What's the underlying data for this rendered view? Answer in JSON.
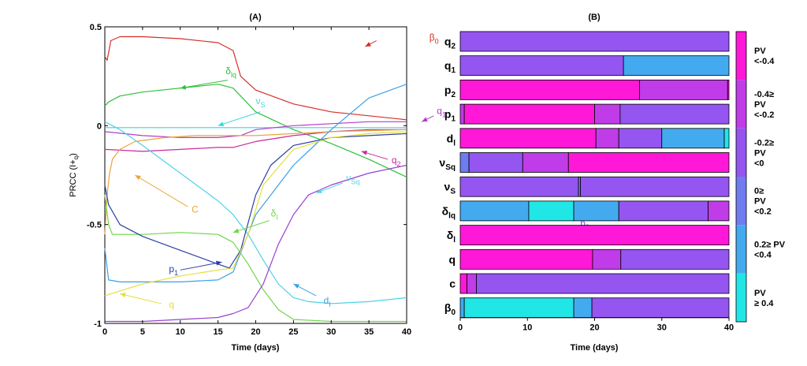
{
  "chart_data": [
    {
      "panel": "(A)",
      "type": "line",
      "title": "(A)",
      "xlabel": "Time (days)",
      "ylabel": "PRCC (I+q)",
      "xlim": [
        0,
        40
      ],
      "ylim": [
        -1,
        0.5
      ],
      "xticks": [
        "0",
        "5",
        "10",
        "15",
        "20",
        "25",
        "30",
        "35",
        "40"
      ],
      "xtick_values": [
        0,
        5,
        10,
        15,
        20,
        25,
        30,
        35,
        40
      ],
      "yticks": [
        "0.5",
        "0",
        "-0.5",
        "-1"
      ],
      "ytick_values": [
        0.5,
        0,
        -0.5,
        -1
      ],
      "series": [
        {
          "name": "β0",
          "color": "#d62f2a",
          "x": [
            0,
            0.3,
            0.8,
            2,
            5,
            10,
            15,
            17,
            18,
            20,
            25,
            30,
            35,
            40
          ],
          "y": [
            0.35,
            0.33,
            0.43,
            0.45,
            0.45,
            0.44,
            0.42,
            0.38,
            0.25,
            0.18,
            0.11,
            0.07,
            0.05,
            0.03
          ]
        },
        {
          "name": "δlq",
          "color": "#2fbf3a",
          "x": [
            0,
            0.5,
            2,
            5,
            10,
            15,
            17,
            20,
            25,
            30,
            35,
            40
          ],
          "y": [
            0.1,
            0.12,
            0.15,
            0.17,
            0.19,
            0.21,
            0.19,
            0.07,
            -0.02,
            -0.09,
            -0.17,
            -0.26
          ]
        },
        {
          "name": "νS",
          "color": "#3fd6d6",
          "x": [
            0,
            5,
            10,
            15,
            20,
            25,
            30,
            35,
            40
          ],
          "y": [
            -0.01,
            -0.01,
            -0.01,
            -0.01,
            -0.01,
            -0.01,
            -0.01,
            -0.01,
            -0.01
          ]
        },
        {
          "name": "q1",
          "color": "#b040c8",
          "x": [
            0,
            5,
            10,
            15,
            18,
            20,
            25,
            30,
            35,
            40
          ],
          "y": [
            -0.03,
            -0.05,
            -0.06,
            -0.06,
            -0.05,
            -0.02,
            0.0,
            0.01,
            0.02,
            0.02
          ]
        },
        {
          "name": "q2",
          "color": "#c82aa0",
          "x": [
            0,
            5,
            10,
            15,
            17,
            20,
            25,
            30,
            35,
            40
          ],
          "y": [
            -0.12,
            -0.13,
            -0.12,
            -0.11,
            -0.11,
            -0.08,
            -0.05,
            -0.03,
            -0.02,
            -0.02
          ]
        },
        {
          "name": "νSq",
          "color": "#4dd3e8",
          "x": [
            0,
            2,
            5,
            10,
            15,
            17,
            19,
            21,
            23,
            25,
            27,
            30,
            35,
            40
          ],
          "y": [
            0.02,
            -0.02,
            -0.1,
            -0.24,
            -0.38,
            -0.45,
            -0.55,
            -0.68,
            -0.8,
            -0.87,
            -0.89,
            -0.9,
            -0.89,
            -0.87
          ]
        },
        {
          "name": "C",
          "color": "#e8a63a",
          "x": [
            0,
            0.3,
            0.6,
            1,
            2,
            4,
            8,
            12,
            17,
            20,
            25,
            30,
            40
          ],
          "y": [
            -0.55,
            -0.35,
            -0.25,
            -0.17,
            -0.12,
            -0.08,
            -0.06,
            -0.05,
            -0.05,
            -0.05,
            -0.04,
            -0.03,
            -0.02
          ]
        },
        {
          "name": "δl",
          "color": "#6fd64a",
          "x": [
            0,
            0.5,
            1,
            3,
            5,
            10,
            15,
            17,
            19,
            21,
            23,
            25,
            30,
            35,
            40
          ],
          "y": [
            -0.35,
            -0.5,
            -0.55,
            -0.55,
            -0.55,
            -0.54,
            -0.55,
            -0.59,
            -0.7,
            -0.83,
            -0.93,
            -0.98,
            -0.99,
            -0.99,
            -0.99
          ]
        },
        {
          "name": "p1",
          "color": "#2b3fa8",
          "x": [
            0,
            0.5,
            2,
            5,
            10,
            15,
            16.5,
            18,
            20,
            22,
            25,
            30,
            35,
            40
          ],
          "y": [
            -0.3,
            -0.4,
            -0.5,
            -0.56,
            -0.63,
            -0.7,
            -0.72,
            -0.63,
            -0.35,
            -0.2,
            -0.1,
            -0.06,
            -0.05,
            -0.04
          ]
        },
        {
          "name": "d1",
          "color": "#3aa0e8",
          "x": [
            0,
            0.5,
            2,
            5,
            10,
            15,
            17,
            20,
            25,
            30,
            35,
            40
          ],
          "y": [
            -0.62,
            -0.78,
            -0.79,
            -0.79,
            -0.79,
            -0.78,
            -0.74,
            -0.45,
            -0.2,
            -0.02,
            0.14,
            0.21
          ]
        },
        {
          "name": "q",
          "color": "#e6df3a",
          "x": [
            0,
            5,
            10,
            15,
            17,
            19,
            21,
            25,
            30,
            35,
            40
          ],
          "y": [
            -0.86,
            -0.8,
            -0.76,
            -0.73,
            -0.72,
            -0.55,
            -0.3,
            -0.12,
            -0.06,
            -0.04,
            -0.03
          ]
        },
        {
          "name": "p2",
          "color": "#9a3fd0",
          "x": [
            0,
            5,
            10,
            15,
            17,
            19,
            21,
            23,
            25,
            27,
            30,
            35,
            40
          ],
          "y": [
            -0.99,
            -0.99,
            -0.98,
            -0.97,
            -0.95,
            -0.92,
            -0.8,
            -0.6,
            -0.45,
            -0.35,
            -0.3,
            -0.24,
            -0.2
          ]
        }
      ],
      "annotations": [
        {
          "base": "β",
          "sub": "0",
          "color": "#d62f2a"
        },
        {
          "base": "δ",
          "sub": "lq",
          "color": "#2fbf3a"
        },
        {
          "base": "ν",
          "sub": "S",
          "color": "#3fd6d6"
        },
        {
          "base": "q",
          "sub": "1",
          "color": "#b040c8"
        },
        {
          "base": "q",
          "sub": "2",
          "color": "#c82aa0"
        },
        {
          "base": "ν",
          "sub": "Sq",
          "color": "#4dd3e8"
        },
        {
          "base": "C",
          "sub": "",
          "color": "#e8a63a"
        },
        {
          "base": "δ",
          "sub": "l",
          "color": "#6fd64a"
        },
        {
          "base": "p",
          "sub": "1",
          "color": "#2b3fa8"
        },
        {
          "base": "d",
          "sub": "l",
          "color": "#3aa0e8"
        },
        {
          "base": "q",
          "sub": "",
          "color": "#e6df3a"
        },
        {
          "base": "p",
          "sub": "2",
          "color": "#9a3fd0"
        }
      ]
    },
    {
      "panel": "(B)",
      "type": "bar",
      "orientation": "horizontal",
      "stacked": true,
      "title": "(B)",
      "xlabel": "Time (days)",
      "xlim": [
        0,
        40
      ],
      "xticks": [
        "0",
        "10",
        "20",
        "30",
        "40"
      ],
      "xtick_values": [
        0,
        10,
        20,
        30,
        40
      ],
      "rows": [
        {
          "base": "q",
          "sub": "2",
          "segments": [
            [
              0,
              40,
              2
            ]
          ]
        },
        {
          "base": "q",
          "sub": "1",
          "segments": [
            [
              0,
              24.3,
              2
            ],
            [
              24.3,
              40,
              4
            ]
          ]
        },
        {
          "base": "p",
          "sub": "2",
          "segments": [
            [
              0,
              26.7,
              0
            ],
            [
              26.7,
              39.8,
              1
            ],
            [
              39.8,
              40,
              0
            ]
          ]
        },
        {
          "base": "p",
          "sub": "1",
          "segments": [
            [
              0,
              0.6,
              1
            ],
            [
              0.6,
              20,
              0
            ],
            [
              20,
              23.8,
              1
            ],
            [
              23.8,
              40,
              2
            ]
          ]
        },
        {
          "base": "d",
          "sub": "l",
          "segments": [
            [
              0,
              20.2,
              0
            ],
            [
              20.2,
              23.6,
              1
            ],
            [
              23.6,
              30,
              2
            ],
            [
              30,
              39.3,
              4
            ],
            [
              39.3,
              40,
              5
            ]
          ]
        },
        {
          "base": "ν",
          "sub": "Sq",
          "segments": [
            [
              0,
              1.3,
              3
            ],
            [
              1.3,
              9.3,
              2
            ],
            [
              9.3,
              16.1,
              1
            ],
            [
              16.1,
              40,
              0
            ]
          ]
        },
        {
          "base": "ν",
          "sub": "S",
          "segments": [
            [
              0,
              17.6,
              2
            ],
            [
              17.6,
              17.9,
              3
            ],
            [
              17.9,
              40,
              2
            ]
          ]
        },
        {
          "base": "δ",
          "sub": "lq",
          "segments": [
            [
              0,
              10.2,
              4
            ],
            [
              10.2,
              16.9,
              5
            ],
            [
              16.9,
              23.6,
              4
            ],
            [
              23.6,
              36.9,
              2
            ],
            [
              36.9,
              40,
              1
            ]
          ]
        },
        {
          "base": "δ",
          "sub": "l",
          "segments": [
            [
              0,
              40,
              0
            ]
          ]
        },
        {
          "base": "q",
          "sub": "",
          "segments": [
            [
              0,
              19.7,
              0
            ],
            [
              19.7,
              23.9,
              1
            ],
            [
              23.9,
              40,
              2
            ]
          ]
        },
        {
          "base": "c",
          "sub": "",
          "segments": [
            [
              0,
              1,
              0
            ],
            [
              1,
              2.4,
              1
            ],
            [
              2.4,
              40,
              2
            ]
          ]
        },
        {
          "base": "β",
          "sub": "0",
          "segments": [
            [
              0,
              0.6,
              4
            ],
            [
              0.6,
              16.9,
              5
            ],
            [
              16.9,
              19.6,
              4
            ],
            [
              19.6,
              40,
              2
            ]
          ]
        }
      ],
      "legend": {
        "placement": "right",
        "colors": [
          "#ff18d8",
          "#c03ce8",
          "#9555f0",
          "#6f7cf0",
          "#44aaf0",
          "#20e6e6"
        ],
        "labels": [
          [
            "PV",
            "<-0.4"
          ],
          [
            "-0.4≥",
            "PV",
            "<-0.2"
          ],
          [
            "-0.2≥",
            "PV",
            "<0"
          ],
          [
            "0≥",
            "PV",
            "<0.2"
          ],
          [
            "0.2≥ PV",
            "<0.4"
          ],
          [
            "PV",
            "≥ 0.4"
          ]
        ]
      }
    }
  ]
}
